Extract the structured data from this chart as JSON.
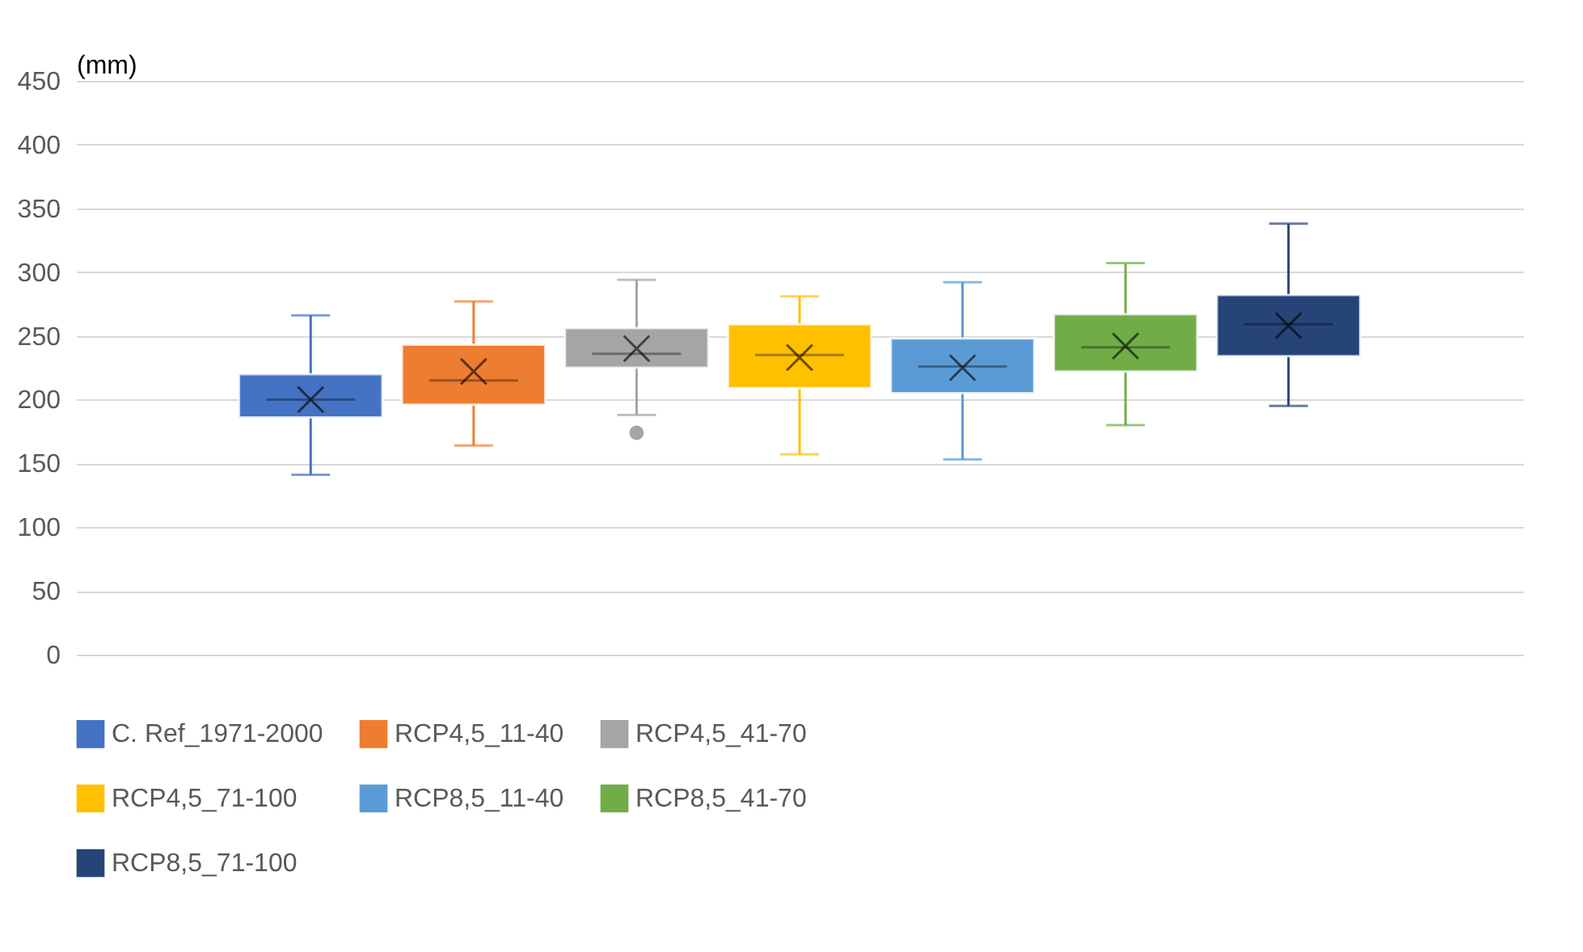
{
  "chart_data": {
    "type": "box",
    "ylabel": "(mm)",
    "categories": [
      null
    ],
    "ylim": [
      0,
      450
    ],
    "yticks": [
      0,
      50,
      100,
      150,
      200,
      250,
      300,
      350,
      400,
      450
    ],
    "grid": "y",
    "legend": "bottom",
    "series": [
      {
        "name": "C. Ref_1971-2000",
        "color": "#4472c4",
        "boxes": [
          {
            "low": 141,
            "q1": 186,
            "median": 200,
            "q3": 220,
            "high": 266,
            "mean": 200
          }
        ]
      },
      {
        "name": "RCP4,5_11-40",
        "color": "#ed7d31",
        "boxes": [
          {
            "low": 164,
            "q1": 196,
            "median": 215,
            "q3": 243,
            "high": 277,
            "mean": 222
          }
        ]
      },
      {
        "name": "RCP4,5_41-70",
        "color": "#a5a5a5",
        "boxes": [
          {
            "low": 188,
            "q1": 225,
            "median": 236,
            "q3": 256,
            "high": 294,
            "mean": 240,
            "outliers": [
              174
            ]
          }
        ]
      },
      {
        "name": "RCP4,5_71-100",
        "color": "#ffc000",
        "boxes": [
          {
            "low": 157,
            "q1": 209,
            "median": 235,
            "q3": 259,
            "high": 281,
            "mean": 233
          }
        ]
      },
      {
        "name": "RCP8,5_11-40",
        "color": "#5b9bd5",
        "boxes": [
          {
            "low": 153,
            "q1": 205,
            "median": 226,
            "q3": 248,
            "high": 292,
            "mean": 225
          }
        ]
      },
      {
        "name": "RCP8,5_41-70",
        "color": "#70ad47",
        "boxes": [
          {
            "low": 180,
            "q1": 222,
            "median": 241,
            "q3": 267,
            "high": 307,
            "mean": 242
          }
        ]
      },
      {
        "name": "RCP8,5_71-100",
        "color": "#264478",
        "boxes": [
          {
            "low": 195,
            "q1": 234,
            "median": 259,
            "q3": 282,
            "high": 338,
            "mean": 258
          }
        ]
      }
    ]
  }
}
